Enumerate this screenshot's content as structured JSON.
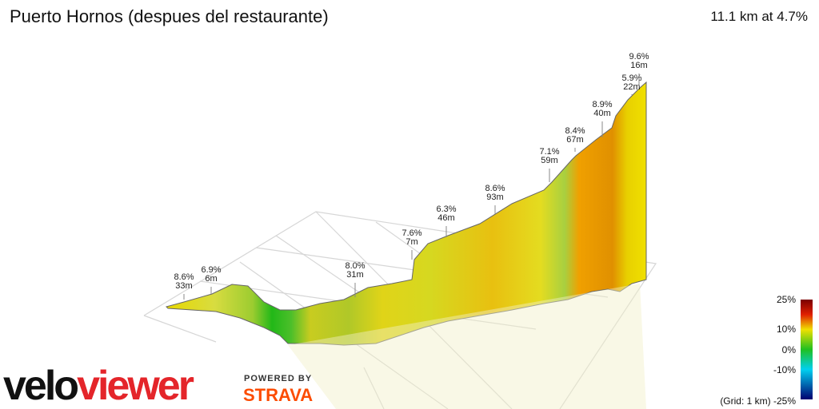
{
  "header": {
    "title": "Puerto Hornos (despues del restaurante)",
    "summary": "11.1 km at 4.7%"
  },
  "annotations": [
    {
      "grade": "8.6%",
      "length": "33m"
    },
    {
      "grade": "6.9%",
      "length": "6m"
    },
    {
      "grade": "8.0%",
      "length": "31m"
    },
    {
      "grade": "7.6%",
      "length": "7m"
    },
    {
      "grade": "6.3%",
      "length": "46m"
    },
    {
      "grade": "8.6%",
      "length": "93m"
    },
    {
      "grade": "7.1%",
      "length": "59m"
    },
    {
      "grade": "8.4%",
      "length": "67m"
    },
    {
      "grade": "8.9%",
      "length": "40m"
    },
    {
      "grade": "5.9%",
      "length": "22m"
    },
    {
      "grade": "9.6%",
      "length": "16m"
    }
  ],
  "legend": {
    "labels": [
      "25%",
      "10%",
      "0%",
      "-10%",
      "(Grid: 1 km) -25%"
    ]
  },
  "branding": {
    "logo_a": "velo",
    "logo_b": "viewer",
    "powered": "POWERED BY",
    "strava": "STRAVA"
  }
}
